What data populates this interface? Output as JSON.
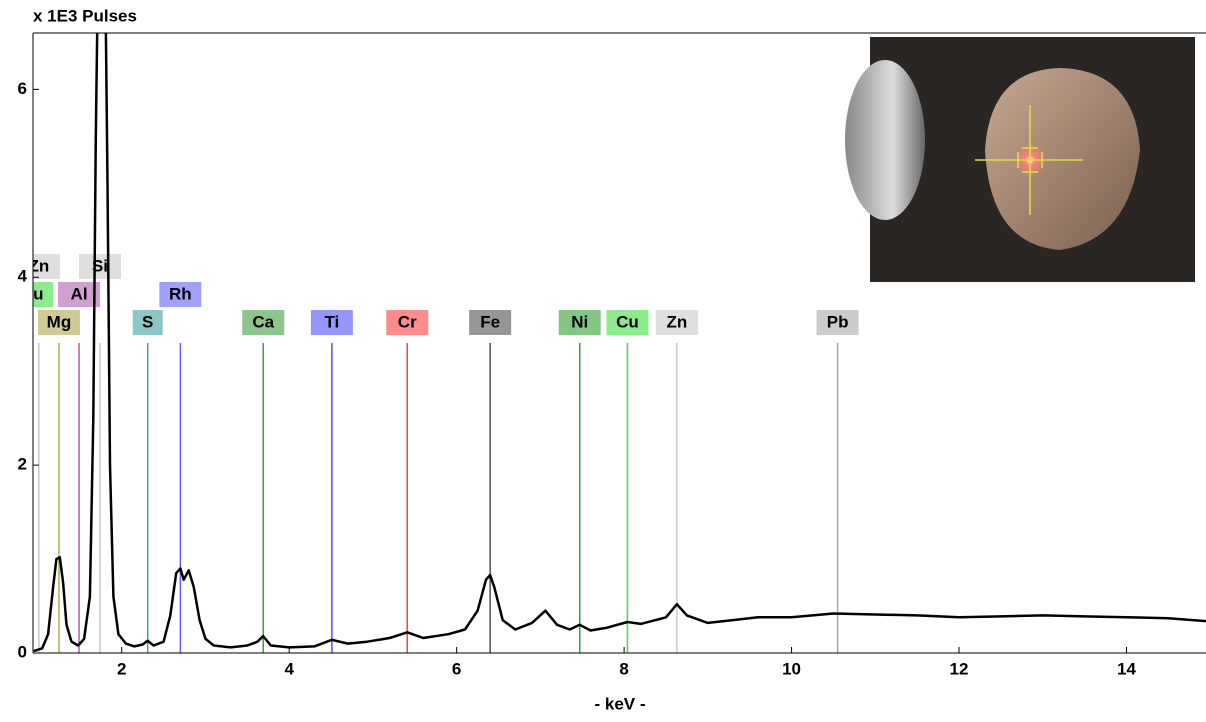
{
  "chart_data": {
    "type": "line",
    "title": "x 1E3 Pulses",
    "x_label": "- keV -",
    "color": "#000000",
    "xlim": [
      0.94,
      14.95
    ],
    "ylim": [
      0,
      6.6
    ],
    "xticks": [
      2,
      4,
      6,
      8,
      10,
      12,
      14
    ],
    "yticks": [
      0,
      2,
      4,
      6
    ],
    "x": [
      0.95,
      1.05,
      1.12,
      1.18,
      1.22,
      1.26,
      1.3,
      1.34,
      1.4,
      1.48,
      1.55,
      1.62,
      1.66,
      1.69,
      1.72,
      1.8,
      1.83,
      1.86,
      1.9,
      1.96,
      2.05,
      2.15,
      2.25,
      2.31,
      2.38,
      2.5,
      2.58,
      2.65,
      2.7,
      2.74,
      2.8,
      2.86,
      2.93,
      3.0,
      3.1,
      3.3,
      3.5,
      3.62,
      3.69,
      3.78,
      4.0,
      4.3,
      4.51,
      4.7,
      4.93,
      5.2,
      5.41,
      5.6,
      5.9,
      6.1,
      6.25,
      6.35,
      6.4,
      6.45,
      6.55,
      6.7,
      6.9,
      7.06,
      7.2,
      7.35,
      7.47,
      7.6,
      7.8,
      8.04,
      8.2,
      8.5,
      8.63,
      8.75,
      9.0,
      9.3,
      9.6,
      10.0,
      10.5,
      11.0,
      11.5,
      12.0,
      12.5,
      13.0,
      13.5,
      14.0,
      14.5,
      14.95
    ],
    "values": [
      0.02,
      0.05,
      0.2,
      0.7,
      1.0,
      1.02,
      0.75,
      0.3,
      0.12,
      0.08,
      0.15,
      0.6,
      2.5,
      5.5,
      7.5,
      7.5,
      5.0,
      2.0,
      0.6,
      0.2,
      0.1,
      0.07,
      0.09,
      0.13,
      0.08,
      0.12,
      0.4,
      0.85,
      0.9,
      0.78,
      0.88,
      0.7,
      0.35,
      0.15,
      0.08,
      0.06,
      0.08,
      0.12,
      0.18,
      0.08,
      0.06,
      0.07,
      0.14,
      0.1,
      0.12,
      0.16,
      0.22,
      0.16,
      0.2,
      0.25,
      0.45,
      0.78,
      0.83,
      0.7,
      0.35,
      0.25,
      0.32,
      0.45,
      0.3,
      0.25,
      0.3,
      0.24,
      0.27,
      0.33,
      0.31,
      0.38,
      0.52,
      0.4,
      0.32,
      0.35,
      0.38,
      0.38,
      0.42,
      0.41,
      0.4,
      0.38,
      0.39,
      0.4,
      0.39,
      0.38,
      0.37,
      0.34
    ],
    "elements": [
      {
        "name": "Mg",
        "energy": 1.25,
        "height": 3.3,
        "color": "#b0a850"
      },
      {
        "name": "Al",
        "energy": 1.49,
        "height": 3.3,
        "color": "#b060b0"
      },
      {
        "name": "Si",
        "energy": 1.74,
        "height": 3.3,
        "color": "#c8c8c8"
      },
      {
        "name": "S",
        "energy": 2.31,
        "height": 3.3,
        "color": "#40a0a0"
      },
      {
        "name": "Rh",
        "energy": 2.7,
        "height": 3.3,
        "color": "#6060ff"
      },
      {
        "name": "Ca",
        "energy": 3.69,
        "height": 3.3,
        "color": "#40a040"
      },
      {
        "name": "Ti",
        "energy": 4.51,
        "height": 3.3,
        "color": "#5050ff"
      },
      {
        "name": "Cr",
        "energy": 5.41,
        "height": 3.3,
        "color": "#ff4040"
      },
      {
        "name": "Fe",
        "energy": 6.4,
        "height": 3.3,
        "color": "#505050"
      },
      {
        "name": "Ni",
        "energy": 7.47,
        "height": 3.3,
        "color": "#30a030"
      },
      {
        "name": "Cu",
        "energy": 8.04,
        "height": 3.3,
        "color": "#40e040"
      },
      {
        "name": "Zn",
        "energy": 8.63,
        "height": 3.3,
        "color": "#c8c8c8"
      },
      {
        "name": "Pb",
        "energy": 10.55,
        "height": 3.3,
        "color": "#a8a8a8"
      },
      {
        "name": "Cu",
        "energy": 0.93,
        "height": 3.3,
        "color": "#40e040"
      },
      {
        "name": "Zn",
        "energy": 1.01,
        "height": 3.3,
        "color": "#c8c8c8"
      }
    ]
  }
}
